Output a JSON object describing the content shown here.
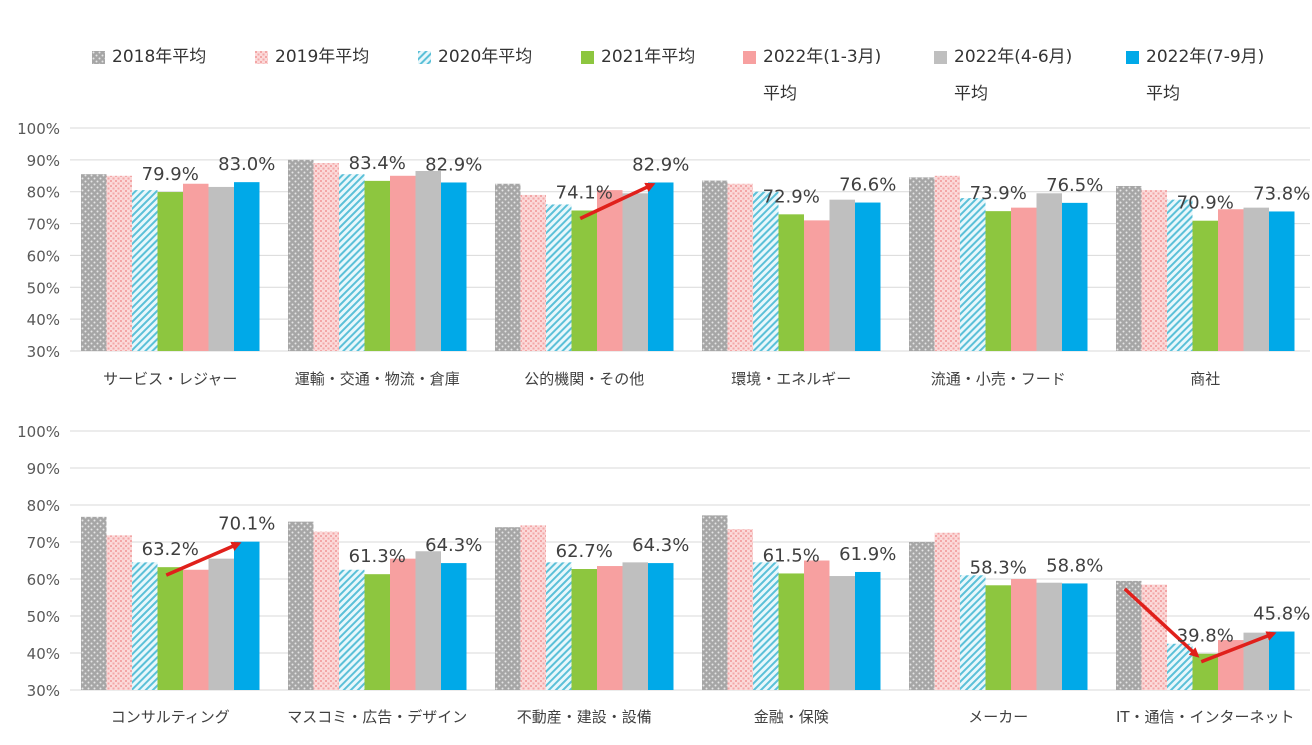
{
  "legend": {
    "items": [
      {
        "label_line1": "2018年平均",
        "label_line2": ""
      },
      {
        "label_line1": "2019年平均",
        "label_line2": ""
      },
      {
        "label_line1": "2020年平均",
        "label_line2": ""
      },
      {
        "label_line1": "2021年平均",
        "label_line2": ""
      },
      {
        "label_line1": "2022年(1-3月)",
        "label_line2": "平均"
      },
      {
        "label_line1": "2022年(4-6月)",
        "label_line2": "平均"
      },
      {
        "label_line1": "2022年(7-9月)",
        "label_line2": "平均"
      }
    ]
  },
  "colors": {
    "s2018": "#a6a6a6",
    "s2019": "#f4b4b4",
    "s2020": "#7fd0e0",
    "s2021": "#8dc63f",
    "s2022a": "#f7a0a0",
    "s2022b": "#bfbfbf",
    "s2022c": "#00a9e8",
    "arrow": "#e0201b",
    "grid": "#d9d9d9"
  },
  "chart_data": [
    {
      "type": "bar",
      "title": "",
      "ylim": [
        30,
        100
      ],
      "yticks": [
        "30%",
        "40%",
        "50%",
        "60%",
        "70%",
        "80%",
        "90%",
        "100%"
      ],
      "categories": [
        "サービス・レジャー",
        "運輸・交通・物流・倉庫",
        "公的機関・その他",
        "環境・エネルギー",
        "流通・小売・フード",
        "商社"
      ],
      "series": [
        {
          "name": "2018年平均",
          "values": [
            85.5,
            90.0,
            82.5,
            83.5,
            84.5,
            81.8
          ]
        },
        {
          "name": "2019年平均",
          "values": [
            85.0,
            89.0,
            79.0,
            82.5,
            85.0,
            80.5
          ]
        },
        {
          "name": "2020年平均",
          "values": [
            80.5,
            85.5,
            76.0,
            80.0,
            78.0,
            77.5
          ]
        },
        {
          "name": "2021年平均",
          "values": [
            79.9,
            83.4,
            74.1,
            72.9,
            73.9,
            70.9
          ]
        },
        {
          "name": "2022年(1-3月)平均",
          "values": [
            82.5,
            85.0,
            80.5,
            71.0,
            75.0,
            74.5
          ]
        },
        {
          "name": "2022年(4-6月)平均",
          "values": [
            81.5,
            86.5,
            79.5,
            77.5,
            79.5,
            75.0
          ]
        },
        {
          "name": "2022年(7-9月)平均",
          "values": [
            83.0,
            82.9,
            82.9,
            76.6,
            76.5,
            73.8
          ]
        }
      ],
      "labels": [
        {
          "text": "79.9%",
          "category": 0,
          "series": 3
        },
        {
          "text": "83.0%",
          "category": 0,
          "series": 6
        },
        {
          "text": "83.4%",
          "category": 1,
          "series": 3
        },
        {
          "text": "82.9%",
          "category": 1,
          "series": 6
        },
        {
          "text": "74.1%",
          "category": 2,
          "series": 3
        },
        {
          "text": "82.9%",
          "category": 2,
          "series": 6
        },
        {
          "text": "72.9%",
          "category": 3,
          "series": 3
        },
        {
          "text": "76.6%",
          "category": 3,
          "series": 6
        },
        {
          "text": "73.9%",
          "category": 4,
          "series": 3
        },
        {
          "text": "76.5%",
          "category": 4,
          "series": 6
        },
        {
          "text": "70.9%",
          "category": 5,
          "series": 3
        },
        {
          "text": "73.8%",
          "category": 5,
          "series": 6
        }
      ],
      "arrows": [
        {
          "category": 2,
          "from_series": 3,
          "to_series": 6
        }
      ]
    },
    {
      "type": "bar",
      "title": "",
      "ylim": [
        30,
        100
      ],
      "yticks": [
        "30%",
        "40%",
        "50%",
        "60%",
        "70%",
        "80%",
        "90%",
        "100%"
      ],
      "categories": [
        "コンサルティング",
        "マスコミ・広告・デザイン",
        "不動産・建設・設備",
        "金融・保険",
        "メーカー",
        "IT・通信・インターネット"
      ],
      "series": [
        {
          "name": "2018年平均",
          "values": [
            76.8,
            75.5,
            74.0,
            77.2,
            70.0,
            59.5
          ]
        },
        {
          "name": "2019年平均",
          "values": [
            71.8,
            72.8,
            74.5,
            73.5,
            72.5,
            58.5
          ]
        },
        {
          "name": "2020年平均",
          "values": [
            64.5,
            62.5,
            64.5,
            64.5,
            61.0,
            42.5
          ]
        },
        {
          "name": "2021年平均",
          "values": [
            63.2,
            61.3,
            62.7,
            61.5,
            58.3,
            39.8
          ]
        },
        {
          "name": "2022年(1-3月)平均",
          "values": [
            62.5,
            65.5,
            63.5,
            65.0,
            60.0,
            43.5
          ]
        },
        {
          "name": "2022年(4-6月)平均",
          "values": [
            65.5,
            67.5,
            64.5,
            60.8,
            59.0,
            45.5
          ]
        },
        {
          "name": "2022年(7-9月)平均",
          "values": [
            70.1,
            64.3,
            64.3,
            61.9,
            58.8,
            45.8
          ]
        }
      ],
      "labels": [
        {
          "text": "63.2%",
          "category": 0,
          "series": 3
        },
        {
          "text": "70.1%",
          "category": 0,
          "series": 6
        },
        {
          "text": "61.3%",
          "category": 1,
          "series": 3
        },
        {
          "text": "64.3%",
          "category": 1,
          "series": 6
        },
        {
          "text": "62.7%",
          "category": 2,
          "series": 3
        },
        {
          "text": "64.3%",
          "category": 2,
          "series": 6
        },
        {
          "text": "61.5%",
          "category": 3,
          "series": 3
        },
        {
          "text": "61.9%",
          "category": 3,
          "series": 6
        },
        {
          "text": "58.3%",
          "category": 4,
          "series": 3
        },
        {
          "text": "58.8%",
          "category": 4,
          "series": 6
        },
        {
          "text": "39.8%",
          "category": 5,
          "series": 3
        },
        {
          "text": "45.8%",
          "category": 5,
          "series": 6
        }
      ],
      "arrows": [
        {
          "category": 0,
          "from_series": 3,
          "to_series": 6
        },
        {
          "category": 5,
          "from_series": 0,
          "to_series": 3
        },
        {
          "category": 5,
          "from_series": 3,
          "to_series": 6
        }
      ]
    }
  ]
}
